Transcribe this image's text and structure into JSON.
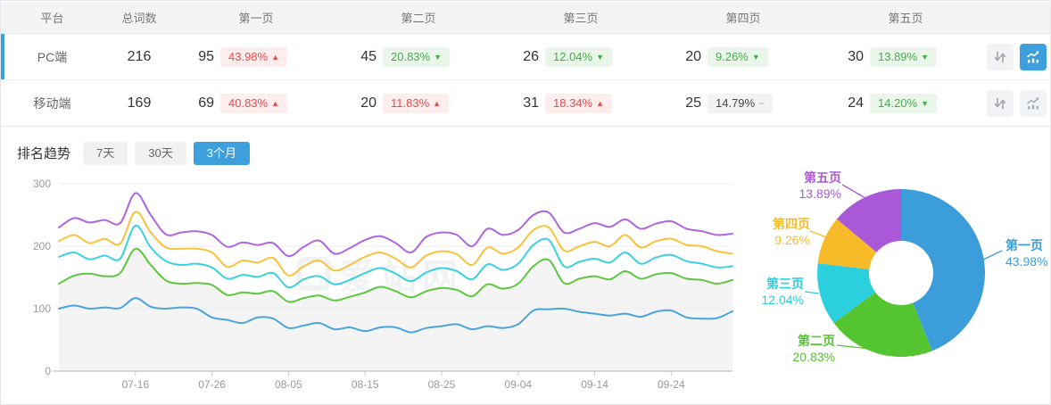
{
  "accent_color": "#3da0dc",
  "table": {
    "headers": [
      "平台",
      "总词数",
      "第一页",
      "第二页",
      "第三页",
      "第四页",
      "第五页"
    ],
    "rows": [
      {
        "platform": "PC端",
        "total": "216",
        "selected": true,
        "chart_selected": true,
        "pages": [
          {
            "count": "95",
            "pct": "43.98%",
            "dir": "up",
            "tone": "red"
          },
          {
            "count": "45",
            "pct": "20.83%",
            "dir": "down",
            "tone": "green"
          },
          {
            "count": "26",
            "pct": "12.04%",
            "dir": "down",
            "tone": "green"
          },
          {
            "count": "20",
            "pct": "9.26%",
            "dir": "down",
            "tone": "green"
          },
          {
            "count": "30",
            "pct": "13.89%",
            "dir": "down",
            "tone": "green"
          }
        ]
      },
      {
        "platform": "移动端",
        "total": "169",
        "selected": false,
        "chart_selected": false,
        "pages": [
          {
            "count": "69",
            "pct": "40.83%",
            "dir": "up",
            "tone": "red"
          },
          {
            "count": "20",
            "pct": "11.83%",
            "dir": "up",
            "tone": "red"
          },
          {
            "count": "31",
            "pct": "18.34%",
            "dir": "up",
            "tone": "red"
          },
          {
            "count": "25",
            "pct": "14.79%",
            "dir": "flat",
            "tone": "gray"
          },
          {
            "count": "24",
            "pct": "14.20%",
            "dir": "down",
            "tone": "green"
          }
        ]
      }
    ]
  },
  "trend": {
    "title": "排名趋势",
    "tabs": [
      {
        "label": "7天",
        "active": false
      },
      {
        "label": "30天",
        "active": false
      },
      {
        "label": "3个月",
        "active": true
      }
    ]
  },
  "watermark": "爱站网",
  "chart_data": [
    {
      "type": "line",
      "title": "排名趋势（3个月）",
      "stacked_cumulative": true,
      "ylim": [
        0,
        300
      ],
      "y_ticks": [
        0,
        100,
        200,
        300
      ],
      "total_days": 88,
      "x_ticks": [
        {
          "label": "07-16",
          "day": 10
        },
        {
          "label": "07-26",
          "day": 20
        },
        {
          "label": "08-05",
          "day": 30
        },
        {
          "label": "08-15",
          "day": 40
        },
        {
          "label": "08-25",
          "day": 50
        },
        {
          "label": "09-04",
          "day": 60
        },
        {
          "label": "09-14",
          "day": 70
        },
        {
          "label": "09-24",
          "day": 80
        }
      ],
      "area_fill": {
        "under_series": "第二页",
        "color": "#f4f4f4"
      },
      "series": [
        {
          "name": "第一页",
          "color": "#4aa4de",
          "values": [
            100,
            105,
            100,
            102,
            101,
            117,
            103,
            100,
            102,
            100,
            86,
            82,
            77,
            86,
            84,
            69,
            73,
            77,
            67,
            70,
            64,
            70,
            70,
            62,
            69,
            72,
            75,
            67,
            72,
            69,
            75,
            97,
            99,
            100,
            95,
            92,
            89,
            92,
            87,
            95,
            97,
            86,
            84,
            85,
            96
          ]
        },
        {
          "name": "第二页",
          "color": "#5fc63f",
          "values": [
            140,
            153,
            156,
            152,
            157,
            196,
            170,
            145,
            140,
            141,
            138,
            122,
            126,
            124,
            128,
            111,
            117,
            121,
            113,
            119,
            126,
            135,
            128,
            118,
            128,
            133,
            130,
            120,
            139,
            132,
            140,
            168,
            178,
            141,
            148,
            152,
            147,
            160,
            148,
            155,
            157,
            148,
            146,
            140,
            146
          ]
        },
        {
          "name": "第三页",
          "color": "#3bd0e0",
          "values": [
            183,
            190,
            179,
            185,
            180,
            233,
            198,
            176,
            170,
            172,
            166,
            148,
            154,
            151,
            157,
            134,
            147,
            152,
            139,
            146,
            157,
            165,
            156,
            144,
            158,
            165,
            160,
            147,
            171,
            162,
            172,
            202,
            210,
            168,
            175,
            180,
            174,
            190,
            172,
            182,
            186,
            176,
            172,
            166,
            168
          ]
        },
        {
          "name": "第四页",
          "color": "#f8c23c",
          "values": [
            208,
            218,
            205,
            212,
            204,
            255,
            222,
            198,
            196,
            196,
            190,
            167,
            177,
            174,
            181,
            153,
            168,
            177,
            161,
            170,
            183,
            190,
            180,
            166,
            185,
            192,
            187,
            170,
            198,
            188,
            198,
            226,
            230,
            193,
            200,
            207,
            200,
            218,
            198,
            208,
            212,
            202,
            200,
            192,
            188
          ]
        },
        {
          "name": "第五页",
          "color": "#b065e0",
          "values": [
            230,
            245,
            238,
            242,
            237,
            285,
            250,
            219,
            222,
            224,
            218,
            199,
            206,
            202,
            205,
            184,
            199,
            209,
            188,
            197,
            210,
            216,
            205,
            190,
            215,
            222,
            218,
            200,
            228,
            218,
            226,
            250,
            254,
            222,
            228,
            237,
            231,
            243,
            228,
            236,
            240,
            228,
            224,
            218,
            220
          ]
        }
      ]
    },
    {
      "type": "pie",
      "donut": true,
      "slices": [
        {
          "label": "第一页",
          "value": 43.98,
          "pct_label": "43.98%",
          "color": "#3b9edb"
        },
        {
          "label": "第二页",
          "value": 20.83,
          "pct_label": "20.83%",
          "color": "#55c431"
        },
        {
          "label": "第三页",
          "value": 12.04,
          "pct_label": "12.04%",
          "color": "#2bcfdd"
        },
        {
          "label": "第四页",
          "value": 9.26,
          "pct_label": "9.26%",
          "color": "#f7bb2a"
        },
        {
          "label": "第五页",
          "value": 13.89,
          "pct_label": "13.89%",
          "color": "#a959d8"
        }
      ]
    }
  ]
}
